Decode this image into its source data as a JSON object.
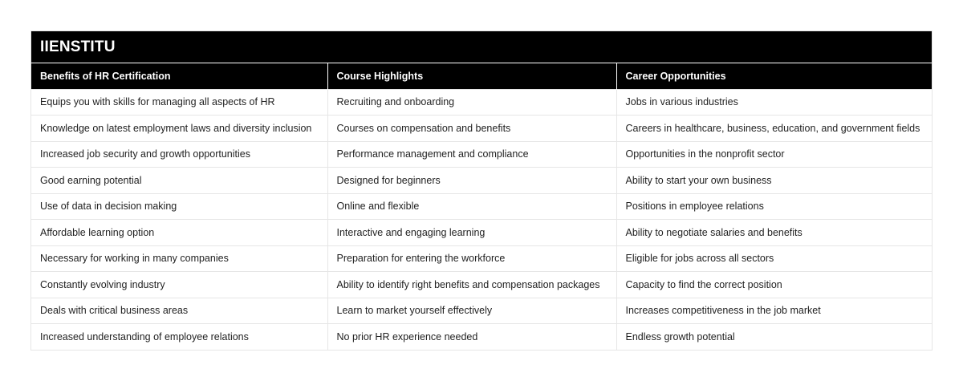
{
  "title": "IIENSTITU",
  "headers": [
    "Benefits of HR Certification",
    "Course Highlights",
    "Career Opportunities"
  ],
  "rows": [
    [
      "Equips you with skills for managing all aspects of HR",
      "Recruiting and onboarding",
      "Jobs in various industries"
    ],
    [
      "Knowledge on latest employment laws and diversity inclusion",
      "Courses on compensation and benefits",
      "Careers in healthcare, business, education, and government fields"
    ],
    [
      "Increased job security and growth opportunities",
      "Performance management and compliance",
      "Opportunities in the nonprofit sector"
    ],
    [
      "Good earning potential",
      "Designed for beginners",
      "Ability to start your own business"
    ],
    [
      "Use of data in decision making",
      "Online and flexible",
      "Positions in employee relations"
    ],
    [
      "Affordable learning option",
      "Interactive and engaging learning",
      "Ability to negotiate salaries and benefits"
    ],
    [
      "Necessary for working in many companies",
      "Preparation for entering the workforce",
      "Eligible for jobs across all sectors"
    ],
    [
      "Constantly evolving industry",
      "Ability to identify right benefits and compensation packages",
      "Capacity to find the correct position"
    ],
    [
      "Deals with critical business areas",
      "Learn to market yourself effectively",
      "Increases competitiveness in the job market"
    ],
    [
      "Increased understanding of employee relations",
      "No prior HR experience needed",
      "Endless growth potential"
    ]
  ]
}
